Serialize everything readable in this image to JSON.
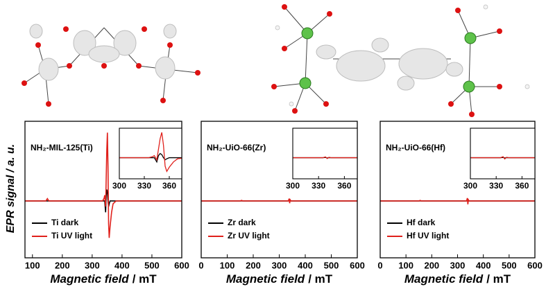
{
  "chart_data": [
    {
      "type": "line",
      "panel_label": "NH₂-MIL-125(Ti)",
      "ylabel": "EPR signal",
      "ylabel_unit": "/ a. u.",
      "xlabel": "Magnetic field",
      "xlabel_unit": "/ mT",
      "x": [
        75,
        145,
        150,
        155,
        335,
        340,
        342,
        345,
        347,
        349,
        351,
        353,
        355,
        357,
        360,
        365,
        370,
        380,
        600
      ],
      "series": [
        {
          "name": "Ti dark",
          "color": "#000000",
          "values": [
            0,
            0,
            0,
            0,
            0,
            0,
            0,
            -0.2,
            0.1,
            0.2,
            0.15,
            0,
            -0.1,
            -0.05,
            0,
            0,
            0,
            0,
            0
          ]
        },
        {
          "name": "Ti UV light",
          "color": "#e0201b",
          "values": [
            0,
            0,
            0.04,
            0,
            0,
            0.05,
            0.1,
            -0.1,
            0.4,
            0.9,
            1.2,
            0.6,
            -0.4,
            -0.65,
            -0.45,
            -0.2,
            -0.05,
            0,
            0
          ]
        }
      ],
      "xlim": [
        75,
        600
      ],
      "xticks": [
        100,
        200,
        300,
        400,
        500,
        600
      ],
      "ylim": [
        -1,
        1.4
      ],
      "inset": {
        "xlim": [
          300,
          375
        ],
        "xticks": [
          300,
          330,
          360
        ],
        "ylim": [
          -1,
          1.4
        ]
      }
    },
    {
      "type": "line",
      "panel_label": "NH₂-UiO-66(Zr)",
      "xlabel": "Magnetic field",
      "xlabel_unit": "/ mT",
      "x": [
        0,
        150,
        155,
        160,
        335,
        338,
        340,
        342,
        345,
        600
      ],
      "series": [
        {
          "name": "Zr dark",
          "color": "#000000",
          "values": [
            0,
            0,
            0,
            0,
            0,
            0.01,
            -0.01,
            0,
            0,
            0
          ]
        },
        {
          "name": "Zr UV light",
          "color": "#e0201b",
          "values": [
            0,
            0,
            0.01,
            0,
            0,
            0.04,
            -0.04,
            0.02,
            0,
            0
          ]
        }
      ],
      "xlim": [
        0,
        600
      ],
      "xticks": [
        0,
        100,
        200,
        300,
        400,
        500,
        600
      ],
      "ylim": [
        -1,
        1.4
      ],
      "inset": {
        "xlim": [
          300,
          375
        ],
        "xticks": [
          300,
          330,
          360
        ],
        "ylim": [
          -1,
          1.4
        ]
      }
    },
    {
      "type": "line",
      "panel_label": "NH₂-UiO-66(Hf)",
      "xlabel": "Magnetic field",
      "xlabel_unit": "/ mT",
      "x": [
        0,
        150,
        155,
        160,
        335,
        338,
        340,
        342,
        345,
        600
      ],
      "series": [
        {
          "name": "Hf dark",
          "color": "#000000",
          "values": [
            0,
            0,
            0,
            0,
            0,
            0.01,
            -0.01,
            0,
            0,
            0
          ]
        },
        {
          "name": "Hf UV light",
          "color": "#e0201b",
          "values": [
            0,
            0,
            0.01,
            0,
            0,
            0.05,
            -0.06,
            0.02,
            0,
            0
          ]
        }
      ],
      "xlim": [
        0,
        600
      ],
      "xticks": [
        0,
        100,
        200,
        300,
        400,
        500,
        600
      ],
      "ylim": [
        -1,
        1.4
      ],
      "inset": {
        "xlim": [
          300,
          375
        ],
        "xticks": [
          300,
          330,
          360
        ],
        "ylim": [
          -1,
          1.4
        ]
      }
    }
  ]
}
